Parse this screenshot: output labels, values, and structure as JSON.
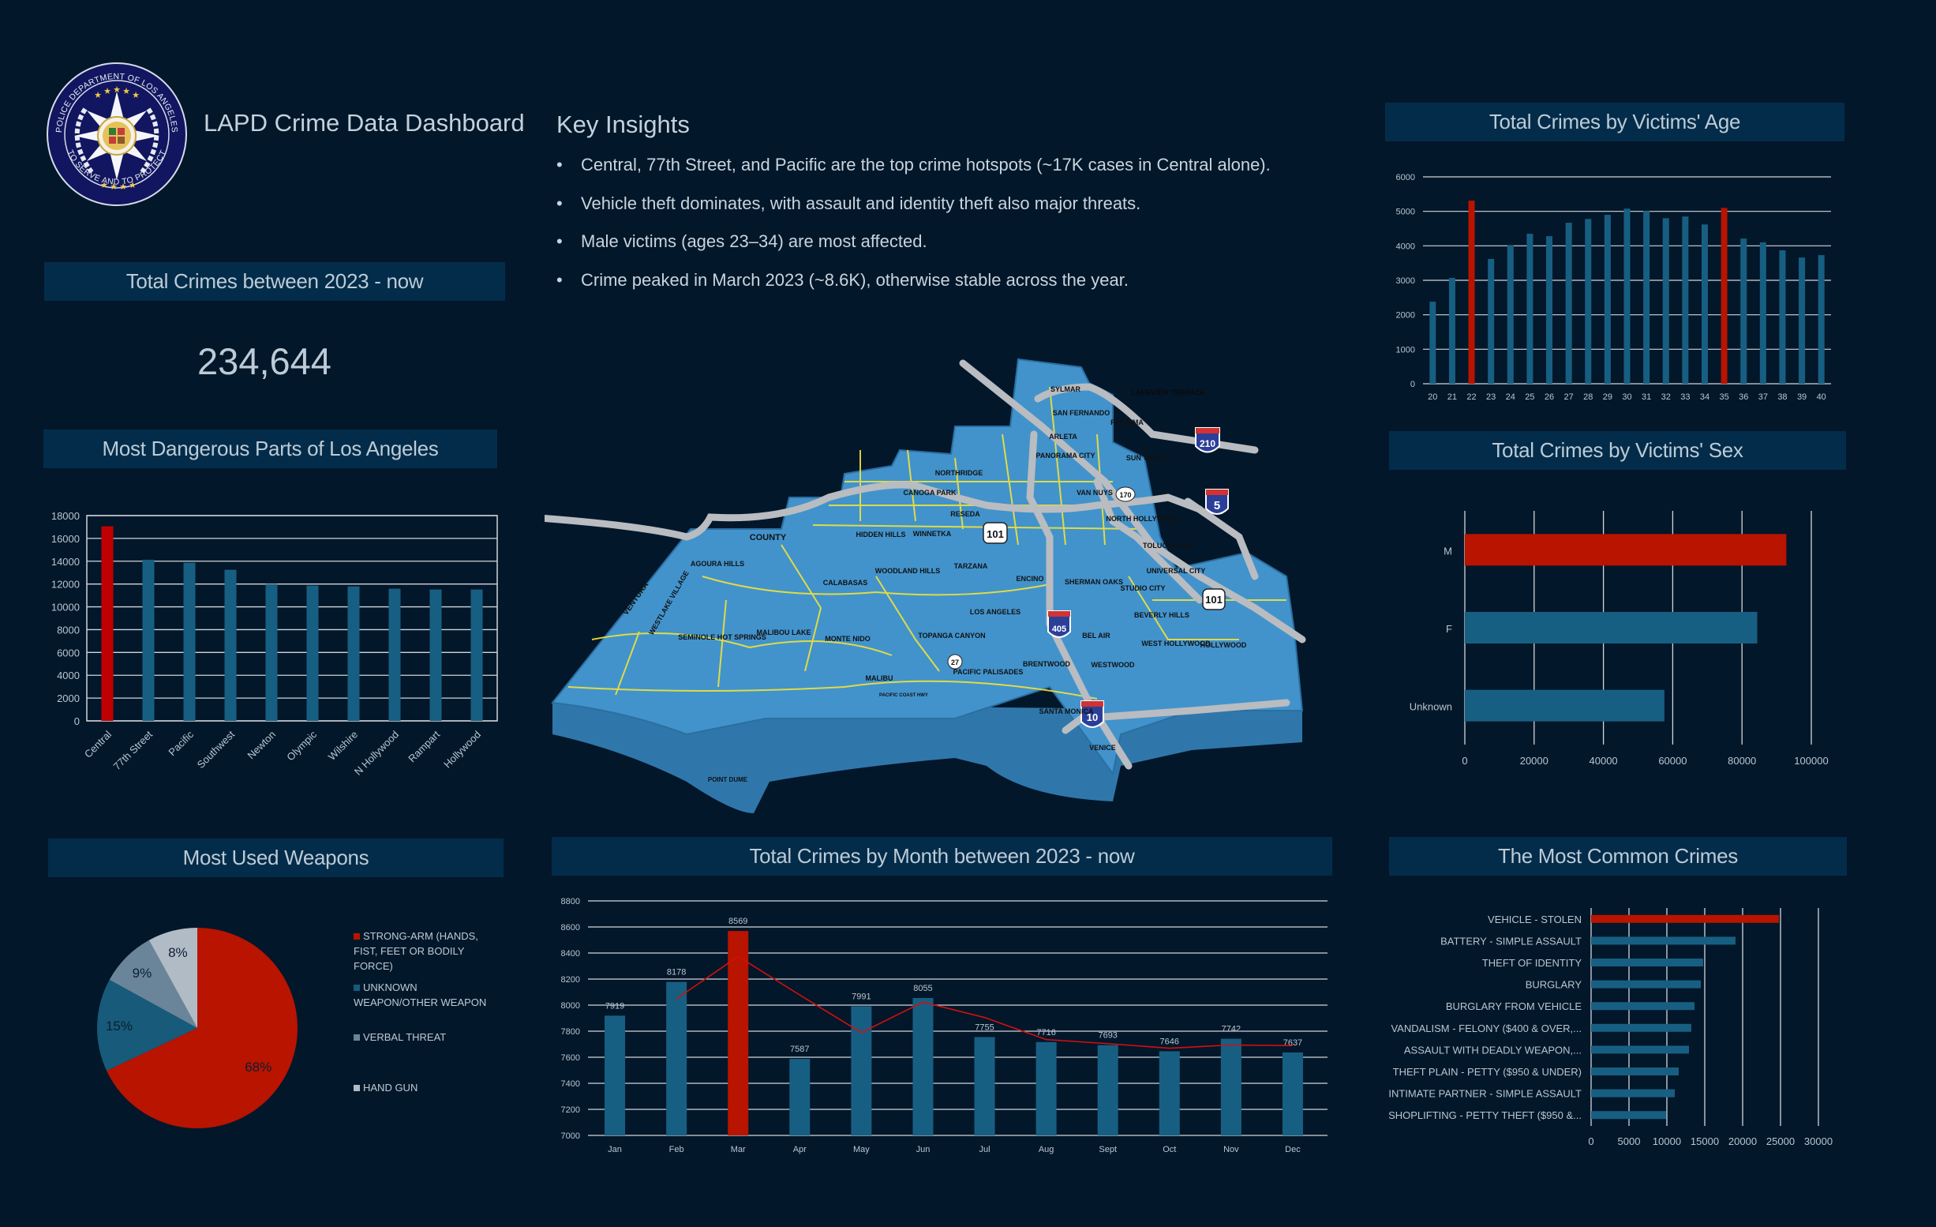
{
  "header": {
    "title": "LAPD Crime Data Dashboard",
    "logo": {
      "name": "LAPD badge",
      "text_top": "POLICE DEPARTMENT OF LOS ANGELES",
      "text_bottom": "TO SERVE AND TO PROTECT"
    }
  },
  "total_crimes": {
    "title": "Total Crimes between 2023 - now",
    "value": "234,644"
  },
  "key_insights": {
    "title": "Key Insights",
    "bullet": "•",
    "items": [
      "Central, 77th Street, and Pacific are the top crime hotspots (~17K cases in Central alone).",
      "Vehicle theft dominates, with assault and identity theft also major threats.",
      "Male victims (ages 23–34) are most affected.",
      "Crime peaked in March 2023 (~8.6K), otherwise stable across the year."
    ]
  },
  "map": {
    "labels": [
      "SYLMAR",
      "SAN FERNANDO",
      "LAKEVIEW TERRACE",
      "PACOIMA",
      "ARLETA",
      "PANORAMA CITY",
      "SUN VALLEY",
      "NORTHRIDGE",
      "CANOGA PARK",
      "VAN NUYS",
      "RESEDA",
      "NORTH HOLLYWOOD",
      "HIDDEN HILLS",
      "WINNETKA",
      "TOLUCA LAKE",
      "COUNTY",
      "AGOURA HILLS",
      "TARZANA",
      "WOODLAND HILLS",
      "ENCINO",
      "UNIVERSAL CITY",
      "VENTURA",
      "WESTLAKE VILLAGE",
      "CALABASAS",
      "SHERMAN OAKS",
      "STUDIO CITY",
      "LOS ANGELES",
      "BEVERLY HILLS",
      "SEMINOLE HOT SPRINGS",
      "MALIBOU LAKE",
      "MONTE NIDO",
      "TOPANGA CANYON",
      "BEL AIR",
      "WEST HOLLYWOOD",
      "HOLLYWOOD",
      "BRENTWOOD",
      "WESTWOOD",
      "PACIFIC PALISADES",
      "MALIBU",
      "PACIFIC COAST HWY",
      "SANTA MONICA",
      "VENICE",
      "POINT DUME"
    ],
    "shields": [
      "210",
      "5",
      "101",
      "170",
      "101",
      "405",
      "27",
      "10"
    ]
  },
  "colors": {
    "background": "#03172a",
    "header_bg": "#032c4a",
    "bar": "#175f82",
    "highlight": "#b81400",
    "grid": "#d0d6dc",
    "pie": [
      "#b81400",
      "#175a7a",
      "#6a8599",
      "#b0bbc6"
    ],
    "map_fill": "#4293cc",
    "map_side": "#2f77ab",
    "road": "#b9bcc0",
    "street": "#f0e23a"
  },
  "chart_data": [
    {
      "id": "areas",
      "type": "bar",
      "title": "Most Dangerous Parts of Los Angeles",
      "categories": [
        "Central",
        "77th Street",
        "Pacific",
        "Southwest",
        "Newton",
        "Olympic",
        "Wilshire",
        "N Hollywood",
        "Rampart",
        "Hollywood"
      ],
      "values": [
        17060,
        14130,
        13870,
        13250,
        12000,
        11860,
        11790,
        11590,
        11520,
        11520
      ],
      "highlight_index": [
        0
      ],
      "ylim": [
        0,
        18000
      ],
      "yticks": [
        0,
        2000,
        4000,
        6000,
        8000,
        10000,
        12000,
        14000,
        16000,
        18000
      ],
      "xlabel": "",
      "ylabel": "",
      "grid": true,
      "legend": "none"
    },
    {
      "id": "age",
      "type": "bar",
      "title": "Total Crimes by Victims' Age",
      "categories": [
        "20",
        "21",
        "22",
        "23",
        "24",
        "25",
        "26",
        "27",
        "28",
        "29",
        "30",
        "31",
        "32",
        "33",
        "34",
        "35",
        "36",
        "37",
        "38",
        "39",
        "40"
      ],
      "values": [
        2380,
        3070,
        5310,
        3620,
        4010,
        4350,
        4280,
        4670,
        4780,
        4900,
        5080,
        5010,
        4800,
        4850,
        4620,
        5100,
        4210,
        4100,
        3870,
        3660,
        3730
      ],
      "highlight_index": [
        2,
        15
      ],
      "ylim": [
        0,
        6000
      ],
      "yticks": [
        0,
        1000,
        2000,
        3000,
        4000,
        5000,
        6000
      ],
      "xlabel": "",
      "ylabel": "",
      "grid": true,
      "legend": "none"
    },
    {
      "id": "sex",
      "type": "bar",
      "orientation": "horizontal",
      "title": "Total Crimes by Victims' Sex",
      "categories": [
        "M",
        "F",
        "Unknown"
      ],
      "values": [
        92800,
        84400,
        57600
      ],
      "highlight_index": [
        0
      ],
      "xlim": [
        0,
        100000
      ],
      "xticks": [
        0,
        20000,
        40000,
        60000,
        80000,
        100000
      ],
      "xlabel": "",
      "ylabel": "",
      "grid": true,
      "legend": "none"
    },
    {
      "id": "weapons",
      "type": "pie",
      "title": "Most Used Weapons",
      "categories": [
        "STRONG-ARM (HANDS, FIST, FEET OR BODILY FORCE)",
        "UNKNOWN WEAPON/OTHER WEAPON",
        "VERBAL THREAT",
        "HAND GUN"
      ],
      "values": [
        68,
        15,
        9,
        8
      ],
      "labels": [
        "68%",
        "15%",
        "9%",
        "8%"
      ],
      "legend": "right"
    },
    {
      "id": "months",
      "type": "bar",
      "title": "Total Crimes by Month between 2023 - now",
      "categories": [
        "Jan",
        "Feb",
        "Mar",
        "Apr",
        "May",
        "Jun",
        "Jul",
        "Aug",
        "Sept",
        "Oct",
        "Nov",
        "Dec"
      ],
      "values": [
        7919,
        8178,
        8569,
        7587,
        7991,
        8055,
        7755,
        7716,
        7693,
        7646,
        7742,
        7637
      ],
      "data_labels": [
        "7919",
        "8178",
        "8569",
        "7587",
        "7991",
        "8055",
        "7755",
        "7716",
        "7693",
        "7646",
        "7742",
        "7637"
      ],
      "highlight_index": [
        2
      ],
      "trendline": {
        "type": "2-period moving average",
        "values": [
          null,
          8048.5,
          8373.5,
          8078,
          7789,
          8023,
          7905,
          7735.5,
          7704.5,
          7669.5,
          7694,
          7689.5
        ]
      },
      "ylim": [
        7000,
        8800
      ],
      "yticks": [
        7000,
        7200,
        7400,
        7600,
        7800,
        8000,
        8200,
        8400,
        8600,
        8800
      ],
      "xlabel": "",
      "ylabel": "",
      "grid": true,
      "legend": "none"
    },
    {
      "id": "crimes",
      "type": "bar",
      "orientation": "horizontal",
      "title": "The Most Common Crimes",
      "categories": [
        "VEHICLE - STOLEN",
        "BATTERY - SIMPLE ASSAULT",
        "THEFT OF IDENTITY",
        "BURGLARY",
        "BURGLARY FROM VEHICLE",
        "VANDALISM - FELONY ($400 & OVER,...",
        "ASSAULT WITH DEADLY WEAPON,...",
        "THEFT PLAIN - PETTY ($950 & UNDER)",
        "INTIMATE PARTNER - SIMPLE ASSAULT",
        "SHOPLIFTING - PETTY THEFT ($950 &..."
      ],
      "values": [
        24790,
        19060,
        14790,
        14480,
        13650,
        13230,
        12920,
        11560,
        11040,
        9900
      ],
      "highlight_index": [
        0
      ],
      "xlim": [
        0,
        30000
      ],
      "xticks": [
        0,
        5000,
        10000,
        15000,
        20000,
        25000,
        30000
      ],
      "xlabel": "",
      "ylabel": "",
      "grid": true,
      "legend": "none"
    }
  ]
}
